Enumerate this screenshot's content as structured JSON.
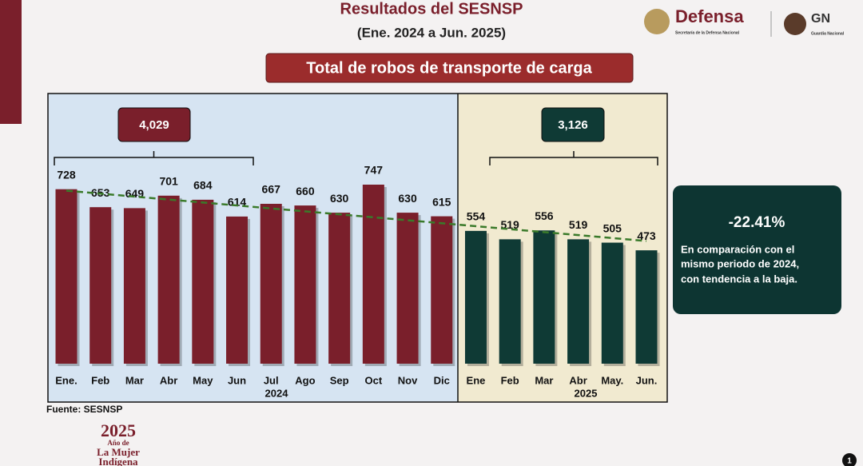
{
  "header": {
    "title": "Resultados del SESNSP",
    "subtitle": "(Ene. 2024 a Jun. 2025)"
  },
  "logos": {
    "defensa": "Defensa",
    "defensa_sub": "Secretaría de la Defensa Nacional",
    "gn": "GN",
    "gn_sub": "Guardia Nacional"
  },
  "chart_data": {
    "type": "bar",
    "title": "Total de robos de transporte de carga",
    "categories": [
      "Ene.",
      "Feb",
      "Mar",
      "Abr",
      "May",
      "Jun",
      "Jul",
      "Ago",
      "Sep",
      "Oct",
      "Nov",
      "Dic",
      "Ene",
      "Feb",
      "Mar",
      "Abr",
      "May.",
      "Jun."
    ],
    "series": [
      {
        "name": "2024",
        "color": "#7a1f2b",
        "values": [
          728,
          653,
          649,
          701,
          684,
          614,
          667,
          660,
          630,
          747,
          630,
          615,
          null,
          null,
          null,
          null,
          null,
          null
        ]
      },
      {
        "name": "2025",
        "color": "#0f3a35",
        "values": [
          null,
          null,
          null,
          null,
          null,
          null,
          null,
          null,
          null,
          null,
          null,
          null,
          554,
          519,
          556,
          519,
          505,
          473
        ]
      }
    ],
    "period_totals": [
      {
        "value": 4029,
        "label": "4,029"
      },
      {
        "value": 3126,
        "label": "3,126"
      }
    ],
    "trend_line": true
  },
  "comparison": {
    "change": {
      "value": -22.41,
      "label": "-22.41%"
    },
    "text": [
      "En comparación con el",
      "mismo periodo de 2024,",
      "con tendencia a la baja."
    ]
  },
  "footer": {
    "source": "Fuente: SESNSP",
    "year": "2025",
    "motto_1": "Año de",
    "motto_2": "La Mujer",
    "motto_3": "Indígena",
    "page": "1"
  }
}
